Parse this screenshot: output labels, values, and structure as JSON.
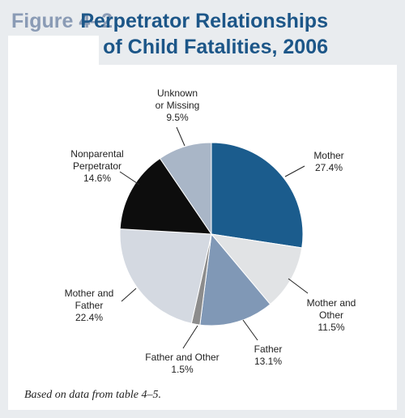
{
  "chart_data": {
    "type": "pie",
    "figure_label": "Figure 4–2",
    "title": "Perpetrator Relationships of Child Fatalities, 2006",
    "categories": [
      "Mother",
      "Mother and Other",
      "Father",
      "Father and Other",
      "Mother and Father",
      "Nonparental Perpetrator",
      "Unknown or Missing"
    ],
    "values": [
      27.4,
      11.5,
      13.1,
      1.5,
      22.4,
      14.6,
      9.5
    ],
    "value_labels": [
      "27.4%",
      "11.5%",
      "13.1%",
      "1.5%",
      "22.4%",
      "14.6%",
      "9.5%"
    ],
    "colors": [
      "#1b5c8d",
      "#e1e3e5",
      "#8098b6",
      "#8c8c8c",
      "#d4d9e1",
      "#0d0d0d",
      "#a9b6c7"
    ],
    "note": "Based on data from table 4–5."
  }
}
